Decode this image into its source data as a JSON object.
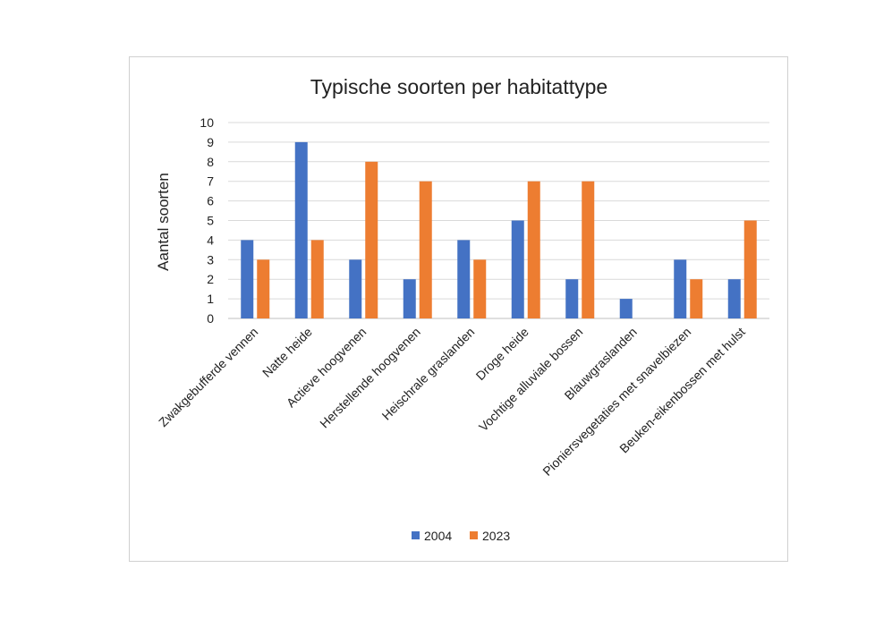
{
  "chart_data": {
    "type": "bar",
    "title": "Typische soorten per habitattype",
    "ylabel": "Aantal soorten",
    "xlabel": "",
    "ylim": [
      0,
      10
    ],
    "yticks": [
      "0",
      "1",
      "2",
      "3",
      "4",
      "5",
      "6",
      "7",
      "8",
      "9",
      "10"
    ],
    "grid": true,
    "legend": "bottom",
    "categories": [
      "Zwakgebufferde vennen",
      "Natte heide",
      "Actieve hoogvenen",
      "Herstellende hoogvenen",
      "Heischrale graslanden",
      "Droge heide",
      "Vochtige alluviale bossen",
      "Blauwgraslanden",
      "Pioniersvegetaties met snavelbiezen",
      "Beuken-eikenbossen met hulst"
    ],
    "series": [
      {
        "name": "2004",
        "color": "#4472C4",
        "values": [
          4,
          9,
          3,
          2,
          4,
          5,
          2,
          1,
          3,
          2
        ]
      },
      {
        "name": "2023",
        "color": "#ED7D31",
        "values": [
          3,
          4,
          8,
          7,
          3,
          7,
          7,
          0,
          2,
          5
        ]
      }
    ]
  }
}
